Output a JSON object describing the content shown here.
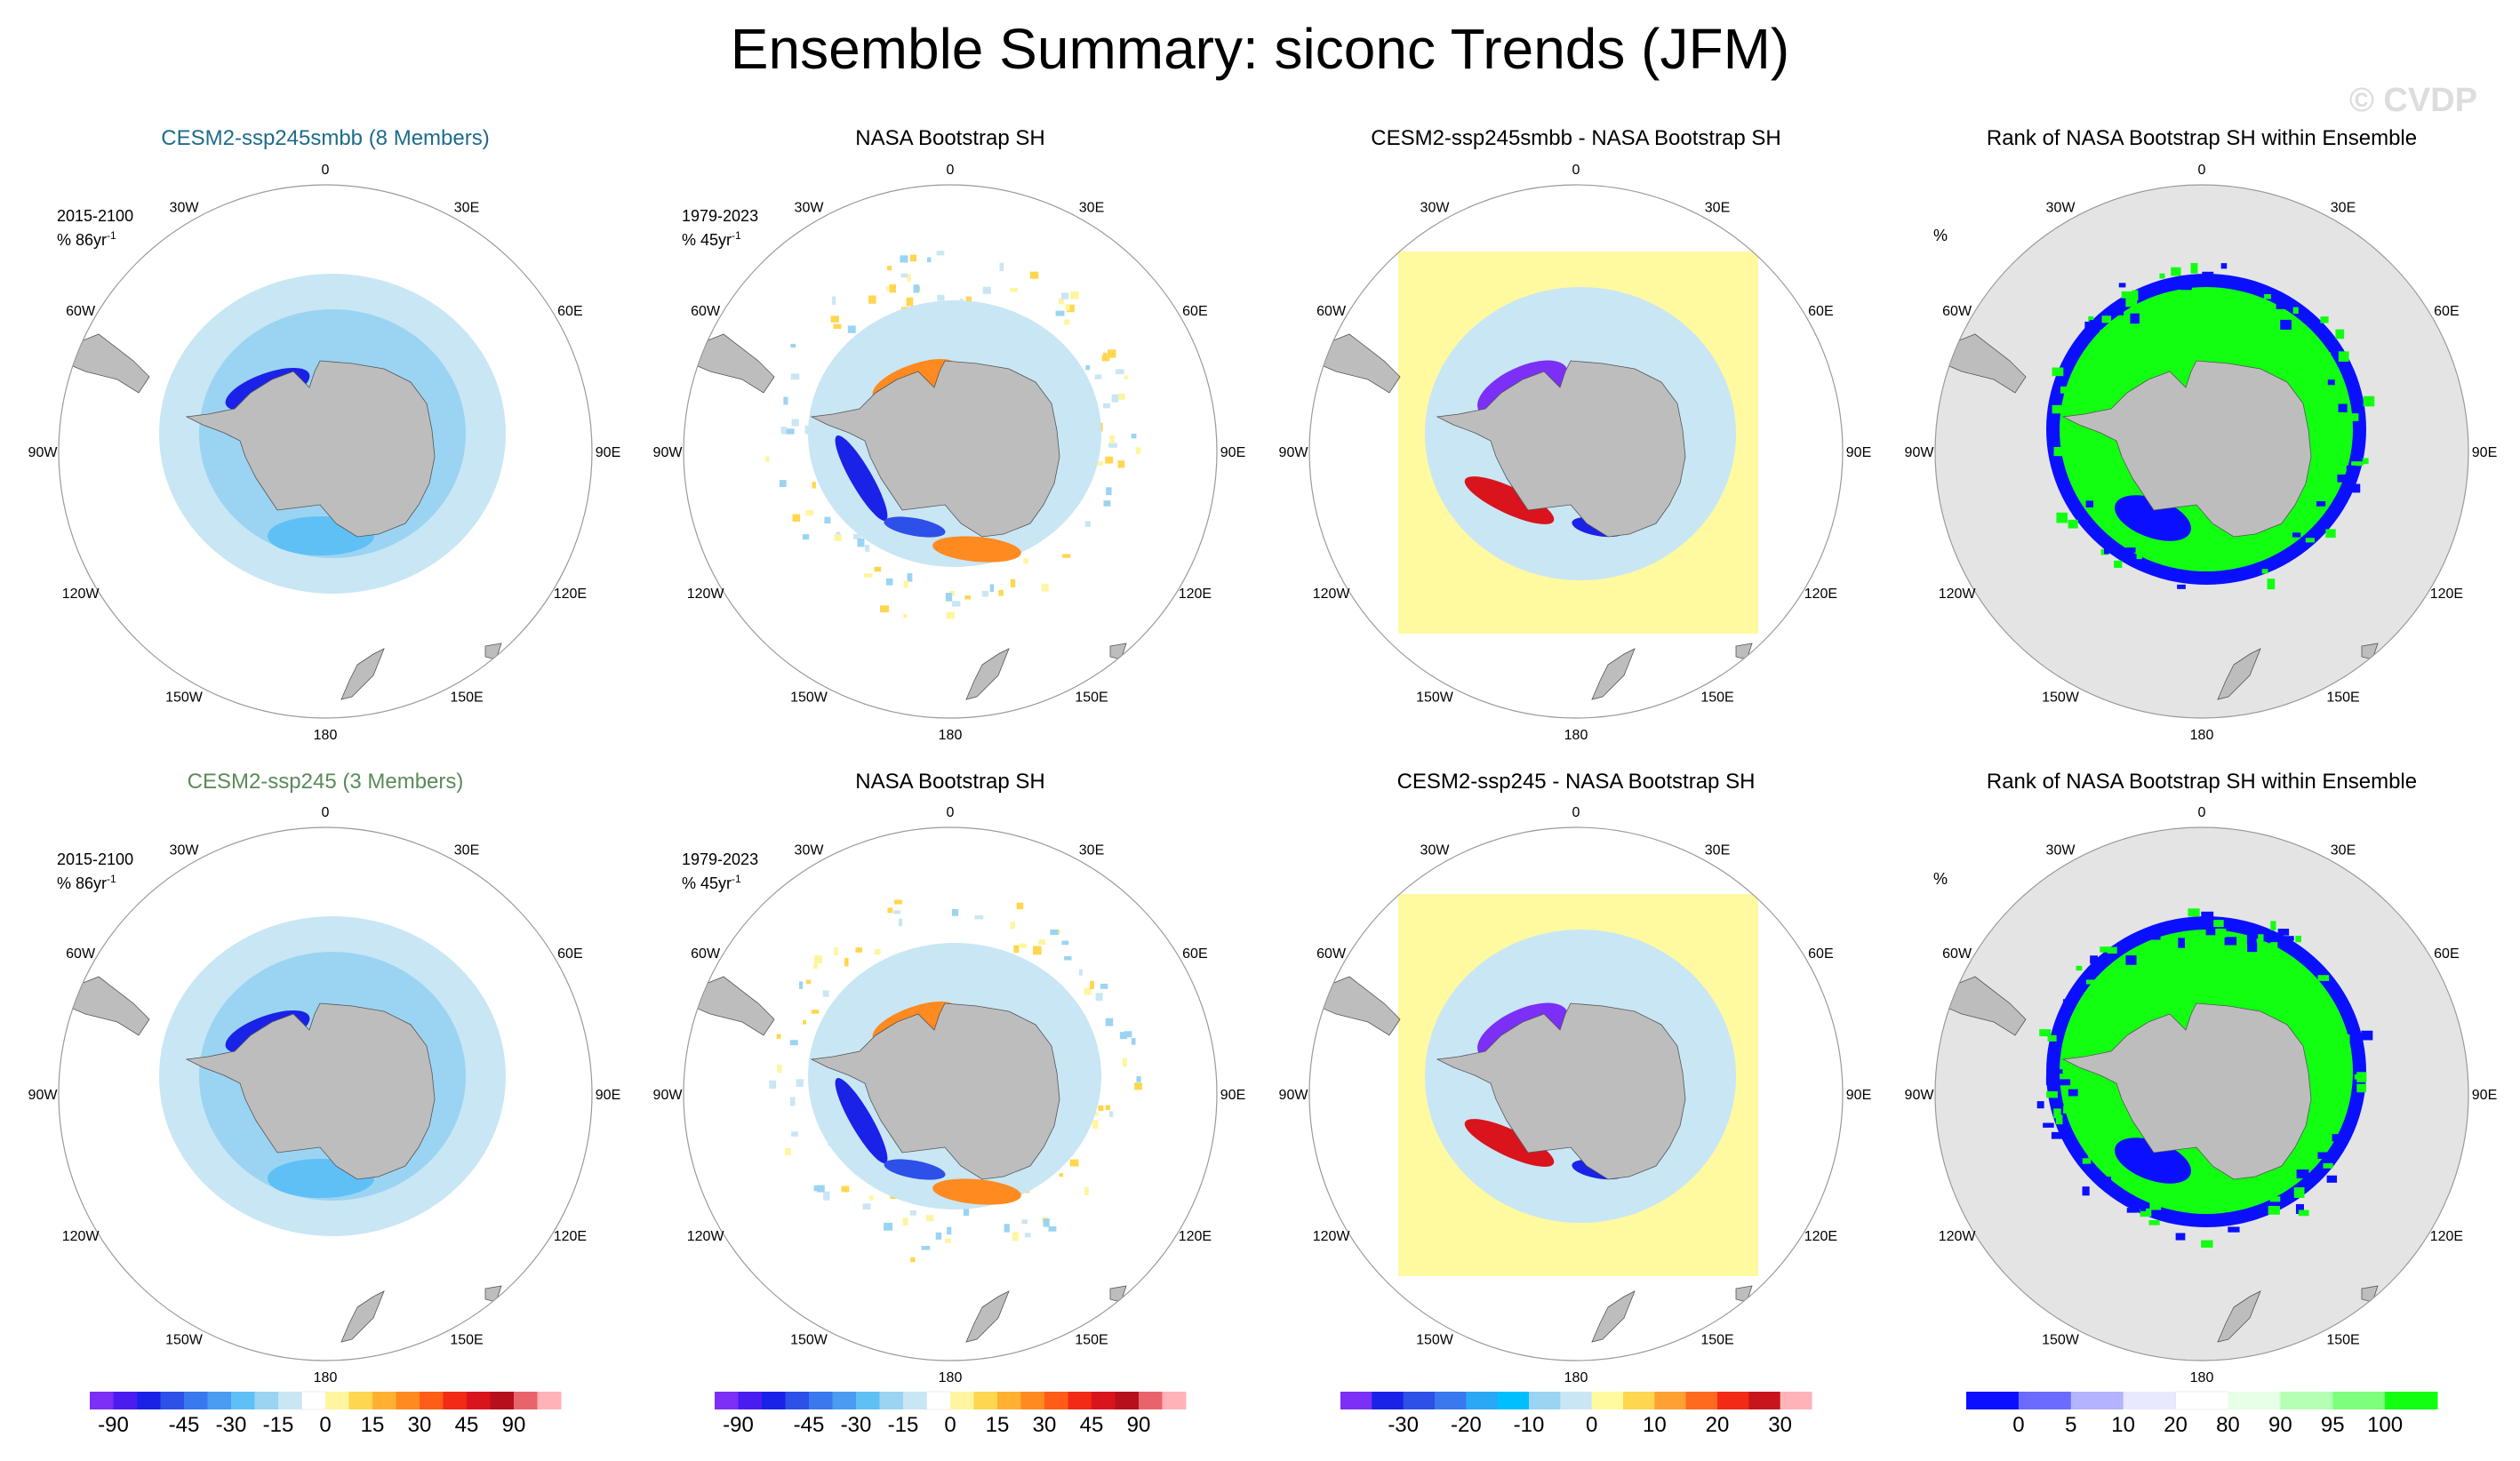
{
  "title": "Ensemble Summary: siconc Trends (JFM)",
  "watermark": "© CVDP",
  "longitude_labels": [
    "0",
    "30E",
    "60E",
    "90E",
    "120E",
    "150E",
    "180",
    "150W",
    "120W",
    "90W",
    "60W",
    "30W"
  ],
  "colors": {
    "land": "#bdbdbd",
    "ocean_masked": "#e4e4e4",
    "ring": "#9a9a9a",
    "trend_scale": [
      "#7b2ff7",
      "#4b1cf0",
      "#1a22e8",
      "#2c50e8",
      "#3a78ef",
      "#4a9bf2",
      "#5fc0f5",
      "#9bd4f2",
      "#c9e6f5",
      "#ffffff",
      "#fff5a0",
      "#ffd64f",
      "#ffb033",
      "#ff8a1f",
      "#ff5c17",
      "#f22a16",
      "#d9141c",
      "#b80f1c",
      "#e9636b",
      "#ffb3b8"
    ],
    "diff_scale": [
      "#7b2ff7",
      "#1a22e8",
      "#2c50e8",
      "#3a78ef",
      "#2aa8f5",
      "#00bfff",
      "#9bd4f2",
      "#c9e6f5",
      "#fffaa0",
      "#ffd64f",
      "#ffa033",
      "#ff6a1f",
      "#f22a16",
      "#c8141c",
      "#ffb3b8"
    ],
    "rank_scale": [
      "#0a10ff",
      "#6b6bff",
      "#b3b3ff",
      "#e8e8ff",
      "#ffffff",
      "#e6ffe6",
      "#b5ffb5",
      "#7dff7d",
      "#12ff12"
    ]
  },
  "chart_data": [
    {
      "type": "heatmap",
      "title": "CESM2-ssp245smbb (8 Members)",
      "title_color": "#1d6b8c",
      "period": "2015-2100",
      "units": "% 86yr",
      "units_sup": "-1",
      "variant": "model",
      "stripe_colors": [
        "#c9e6f5",
        "#9bd4f2",
        "#5fc0f5",
        "#1a22e8"
      ]
    },
    {
      "type": "heatmap",
      "title": "NASA Bootstrap SH",
      "title_color": "#000000",
      "period": "1979-2023",
      "units": "% 45yr",
      "units_sup": "-1",
      "variant": "obs"
    },
    {
      "type": "heatmap",
      "title": "CESM2-ssp245smbb - NASA Bootstrap SH",
      "title_color": "#000000",
      "variant": "diff"
    },
    {
      "type": "heatmap",
      "title": "Rank of NASA Bootstrap SH within Ensemble",
      "title_color": "#000000",
      "units": "%",
      "variant": "rank"
    },
    {
      "type": "heatmap",
      "title": "CESM2-ssp245 (3 Members)",
      "title_color": "#5a8a5a",
      "period": "2015-2100",
      "units": "% 86yr",
      "units_sup": "-1",
      "variant": "model"
    },
    {
      "type": "heatmap",
      "title": "NASA Bootstrap SH",
      "title_color": "#000000",
      "period": "1979-2023",
      "units": "% 45yr",
      "units_sup": "-1",
      "variant": "obs"
    },
    {
      "type": "heatmap",
      "title": "CESM2-ssp245 - NASA Bootstrap SH",
      "title_color": "#000000",
      "variant": "diff"
    },
    {
      "type": "heatmap",
      "title": "Rank of NASA Bootstrap SH within Ensemble",
      "title_color": "#000000",
      "units": "%",
      "variant": "rank"
    }
  ],
  "colorbars": [
    {
      "name": "trend",
      "scale": "trend_scale",
      "labels": [
        "-90",
        "-45",
        "-30",
        "-15",
        "0",
        "15",
        "30",
        "45",
        "90"
      ],
      "label_positions": [
        1,
        4,
        6,
        8,
        10,
        12,
        14,
        16,
        18
      ]
    },
    {
      "name": "trend",
      "scale": "trend_scale",
      "labels": [
        "-90",
        "-45",
        "-30",
        "-15",
        "0",
        "15",
        "30",
        "45",
        "90"
      ],
      "label_positions": [
        1,
        4,
        6,
        8,
        10,
        12,
        14,
        16,
        18
      ]
    },
    {
      "name": "diff",
      "scale": "diff_scale",
      "labels": [
        "-30",
        "-20",
        "-10",
        "0",
        "10",
        "20",
        "30"
      ],
      "label_positions": [
        2,
        4,
        6,
        8,
        10,
        12,
        14
      ]
    },
    {
      "name": "rank",
      "scale": "rank_scale",
      "labels": [
        "0",
        "5",
        "10",
        "20",
        "80",
        "90",
        "95",
        "100"
      ],
      "label_positions": [
        1,
        2,
        3,
        4,
        5,
        6,
        7,
        8
      ]
    }
  ]
}
